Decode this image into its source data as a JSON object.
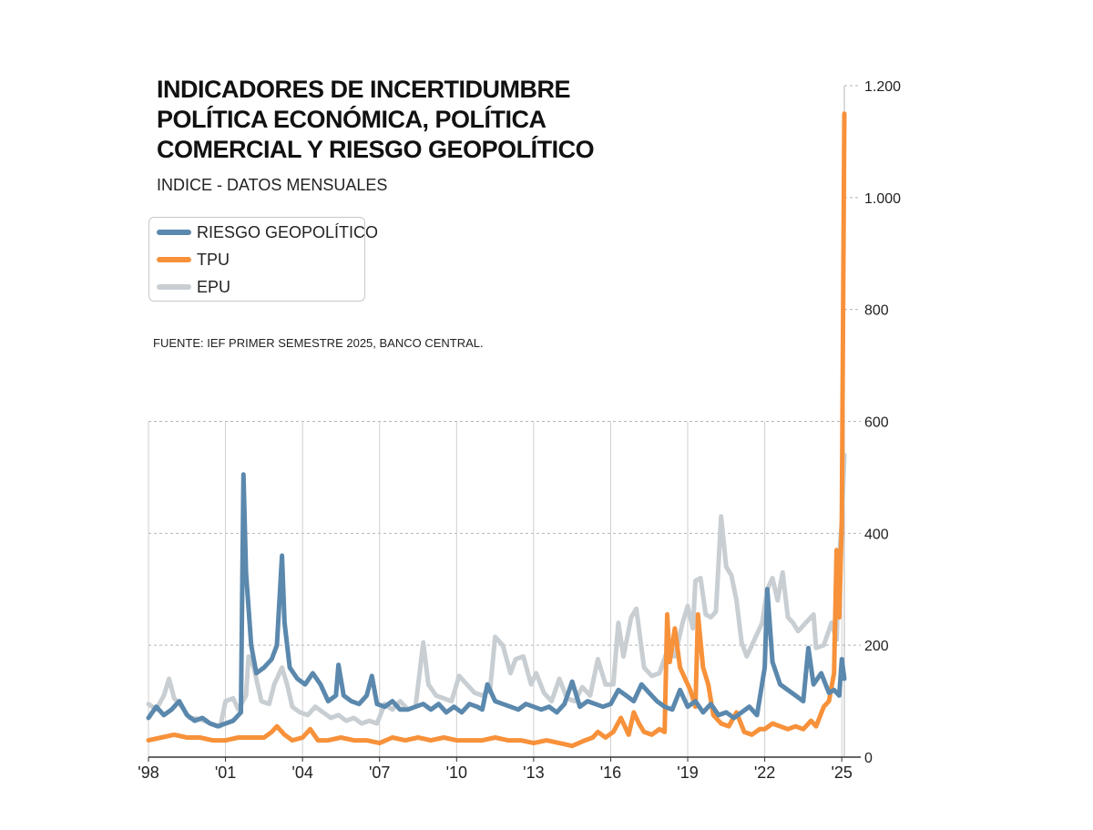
{
  "header": {
    "title": "INDICADORES DE INCERTIDUMBRE POLÍTICA ECONÓMICA, POLÍTICA COMERCIAL Y RIESGO GEOPOLÍTICO",
    "subtitle": "INDICE - DATOS MENSUALES"
  },
  "legend": {
    "items": [
      {
        "label": "RIESGO GEOPOLÍTICO",
        "color": "#5b88ad"
      },
      {
        "label": "TPU",
        "color": "#f7913a"
      },
      {
        "label": "EPU",
        "color": "#c8ced2"
      }
    ]
  },
  "source": "FUENTE: IEF PRIMER SEMESTRE 2025, BANCO CENTRAL.",
  "chart_data": {
    "type": "line",
    "x_tick_labels": [
      "'98",
      "'01",
      "'04",
      "'07",
      "'10",
      "'13",
      "'16",
      "'19",
      "'22",
      "'25"
    ],
    "x_tick_years": [
      1998,
      2001,
      2004,
      2007,
      2010,
      2013,
      2016,
      2019,
      2022,
      2025
    ],
    "xlim": [
      1998,
      2025.1
    ],
    "y_tick_labels": [
      "0",
      "200",
      "400",
      "600",
      "800",
      "1.000",
      "1.200"
    ],
    "y_tick_values": [
      0,
      200,
      400,
      600,
      800,
      1000,
      1200
    ],
    "ylim": [
      0,
      1200
    ],
    "grid": true,
    "legend_position": "top-left",
    "series": [
      {
        "name": "EPU",
        "color": "#c8ced2",
        "points": [
          [
            1998.0,
            95
          ],
          [
            1998.3,
            85
          ],
          [
            1998.6,
            110
          ],
          [
            1998.8,
            140
          ],
          [
            1999.0,
            105
          ],
          [
            1999.3,
            90
          ],
          [
            1999.6,
            70
          ],
          [
            2000.0,
            68
          ],
          [
            2000.4,
            60
          ],
          [
            2000.8,
            55
          ],
          [
            2001.0,
            100
          ],
          [
            2001.3,
            105
          ],
          [
            2001.5,
            85
          ],
          [
            2001.8,
            110
          ],
          [
            2001.9,
            180
          ],
          [
            2002.1,
            160
          ],
          [
            2002.4,
            100
          ],
          [
            2002.7,
            95
          ],
          [
            2002.9,
            130
          ],
          [
            2003.2,
            160
          ],
          [
            2003.4,
            130
          ],
          [
            2003.6,
            90
          ],
          [
            2003.9,
            80
          ],
          [
            2004.2,
            75
          ],
          [
            2004.5,
            90
          ],
          [
            2004.8,
            80
          ],
          [
            2005.1,
            70
          ],
          [
            2005.4,
            75
          ],
          [
            2005.7,
            65
          ],
          [
            2006.0,
            70
          ],
          [
            2006.3,
            60
          ],
          [
            2006.6,
            65
          ],
          [
            2006.9,
            60
          ],
          [
            2007.2,
            95
          ],
          [
            2007.5,
            85
          ],
          [
            2007.8,
            100
          ],
          [
            2008.1,
            85
          ],
          [
            2008.4,
            90
          ],
          [
            2008.7,
            205
          ],
          [
            2008.9,
            130
          ],
          [
            2009.2,
            110
          ],
          [
            2009.5,
            105
          ],
          [
            2009.8,
            100
          ],
          [
            2010.1,
            145
          ],
          [
            2010.4,
            130
          ],
          [
            2010.7,
            115
          ],
          [
            2011.0,
            110
          ],
          [
            2011.3,
            120
          ],
          [
            2011.5,
            215
          ],
          [
            2011.8,
            200
          ],
          [
            2012.1,
            150
          ],
          [
            2012.3,
            175
          ],
          [
            2012.6,
            180
          ],
          [
            2012.9,
            130
          ],
          [
            2013.1,
            150
          ],
          [
            2013.4,
            115
          ],
          [
            2013.7,
            100
          ],
          [
            2014.0,
            140
          ],
          [
            2014.3,
            105
          ],
          [
            2014.6,
            100
          ],
          [
            2014.9,
            125
          ],
          [
            2015.2,
            110
          ],
          [
            2015.5,
            175
          ],
          [
            2015.8,
            130
          ],
          [
            2016.1,
            130
          ],
          [
            2016.3,
            240
          ],
          [
            2016.5,
            180
          ],
          [
            2016.8,
            250
          ],
          [
            2017.0,
            265
          ],
          [
            2017.3,
            160
          ],
          [
            2017.6,
            145
          ],
          [
            2017.9,
            150
          ],
          [
            2018.2,
            190
          ],
          [
            2018.5,
            180
          ],
          [
            2018.8,
            240
          ],
          [
            2019.0,
            270
          ],
          [
            2019.2,
            230
          ],
          [
            2019.3,
            315
          ],
          [
            2019.5,
            320
          ],
          [
            2019.7,
            255
          ],
          [
            2019.9,
            250
          ],
          [
            2020.1,
            260
          ],
          [
            2020.3,
            430
          ],
          [
            2020.5,
            340
          ],
          [
            2020.7,
            325
          ],
          [
            2020.9,
            280
          ],
          [
            2021.1,
            205
          ],
          [
            2021.3,
            180
          ],
          [
            2021.5,
            200
          ],
          [
            2021.8,
            230
          ],
          [
            2021.9,
            240
          ],
          [
            2022.1,
            300
          ],
          [
            2022.3,
            320
          ],
          [
            2022.5,
            280
          ],
          [
            2022.7,
            330
          ],
          [
            2022.9,
            250
          ],
          [
            2023.1,
            240
          ],
          [
            2023.3,
            225
          ],
          [
            2023.6,
            240
          ],
          [
            2023.9,
            255
          ],
          [
            2024.0,
            195
          ],
          [
            2024.3,
            200
          ],
          [
            2024.6,
            240
          ],
          [
            2024.8,
            210
          ],
          [
            2024.9,
            360
          ],
          [
            2025.0,
            420
          ],
          [
            2025.1,
            540
          ]
        ]
      },
      {
        "name": "TPU",
        "color": "#f7913a",
        "points": [
          [
            1998.0,
            30
          ],
          [
            1998.5,
            35
          ],
          [
            1999.0,
            40
          ],
          [
            1999.5,
            35
          ],
          [
            2000.0,
            35
          ],
          [
            2000.5,
            30
          ],
          [
            2001.0,
            30
          ],
          [
            2001.5,
            35
          ],
          [
            2002.0,
            35
          ],
          [
            2002.5,
            35
          ],
          [
            2002.8,
            45
          ],
          [
            2003.0,
            55
          ],
          [
            2003.3,
            40
          ],
          [
            2003.6,
            30
          ],
          [
            2004.0,
            35
          ],
          [
            2004.3,
            50
          ],
          [
            2004.6,
            30
          ],
          [
            2005.0,
            30
          ],
          [
            2005.5,
            35
          ],
          [
            2006.0,
            30
          ],
          [
            2006.5,
            30
          ],
          [
            2007.0,
            25
          ],
          [
            2007.5,
            35
          ],
          [
            2008.0,
            30
          ],
          [
            2008.5,
            35
          ],
          [
            2009.0,
            30
          ],
          [
            2009.5,
            35
          ],
          [
            2010.0,
            30
          ],
          [
            2010.5,
            30
          ],
          [
            2011.0,
            30
          ],
          [
            2011.5,
            35
          ],
          [
            2012.0,
            30
          ],
          [
            2012.5,
            30
          ],
          [
            2013.0,
            25
          ],
          [
            2013.5,
            30
          ],
          [
            2014.0,
            25
          ],
          [
            2014.5,
            20
          ],
          [
            2015.0,
            30
          ],
          [
            2015.3,
            35
          ],
          [
            2015.5,
            45
          ],
          [
            2015.8,
            35
          ],
          [
            2016.1,
            45
          ],
          [
            2016.4,
            70
          ],
          [
            2016.7,
            40
          ],
          [
            2016.9,
            80
          ],
          [
            2017.1,
            60
          ],
          [
            2017.3,
            45
          ],
          [
            2017.6,
            40
          ],
          [
            2017.9,
            50
          ],
          [
            2018.1,
            45
          ],
          [
            2018.2,
            255
          ],
          [
            2018.3,
            170
          ],
          [
            2018.5,
            230
          ],
          [
            2018.7,
            160
          ],
          [
            2018.9,
            140
          ],
          [
            2019.1,
            120
          ],
          [
            2019.3,
            90
          ],
          [
            2019.4,
            255
          ],
          [
            2019.6,
            160
          ],
          [
            2019.8,
            130
          ],
          [
            2020.0,
            75
          ],
          [
            2020.3,
            60
          ],
          [
            2020.6,
            55
          ],
          [
            2020.9,
            80
          ],
          [
            2021.2,
            45
          ],
          [
            2021.5,
            40
          ],
          [
            2021.8,
            50
          ],
          [
            2022.0,
            50
          ],
          [
            2022.3,
            60
          ],
          [
            2022.6,
            55
          ],
          [
            2022.9,
            50
          ],
          [
            2023.2,
            55
          ],
          [
            2023.5,
            50
          ],
          [
            2023.8,
            65
          ],
          [
            2024.0,
            55
          ],
          [
            2024.3,
            90
          ],
          [
            2024.5,
            100
          ],
          [
            2024.7,
            150
          ],
          [
            2024.8,
            370
          ],
          [
            2024.9,
            250
          ],
          [
            2025.0,
            420
          ],
          [
            2025.1,
            1150
          ]
        ]
      },
      {
        "name": "RIESGO GEOPOLÍTICO",
        "color": "#5b88ad",
        "points": [
          [
            1998.0,
            70
          ],
          [
            1998.3,
            90
          ],
          [
            1998.6,
            75
          ],
          [
            1998.9,
            85
          ],
          [
            1999.2,
            100
          ],
          [
            1999.5,
            75
          ],
          [
            1999.8,
            65
          ],
          [
            2000.1,
            70
          ],
          [
            2000.4,
            60
          ],
          [
            2000.7,
            55
          ],
          [
            2001.0,
            60
          ],
          [
            2001.3,
            65
          ],
          [
            2001.6,
            80
          ],
          [
            2001.7,
            505
          ],
          [
            2001.8,
            330
          ],
          [
            2002.0,
            200
          ],
          [
            2002.2,
            150
          ],
          [
            2002.5,
            160
          ],
          [
            2002.8,
            175
          ],
          [
            2003.0,
            200
          ],
          [
            2003.2,
            360
          ],
          [
            2003.3,
            240
          ],
          [
            2003.5,
            160
          ],
          [
            2003.8,
            140
          ],
          [
            2004.1,
            130
          ],
          [
            2004.4,
            150
          ],
          [
            2004.7,
            130
          ],
          [
            2005.0,
            100
          ],
          [
            2005.3,
            110
          ],
          [
            2005.4,
            165
          ],
          [
            2005.6,
            110
          ],
          [
            2005.9,
            100
          ],
          [
            2006.2,
            95
          ],
          [
            2006.5,
            110
          ],
          [
            2006.7,
            145
          ],
          [
            2006.9,
            95
          ],
          [
            2007.2,
            90
          ],
          [
            2007.5,
            100
          ],
          [
            2007.8,
            85
          ],
          [
            2008.1,
            85
          ],
          [
            2008.4,
            90
          ],
          [
            2008.7,
            95
          ],
          [
            2009.0,
            85
          ],
          [
            2009.3,
            95
          ],
          [
            2009.6,
            80
          ],
          [
            2009.9,
            90
          ],
          [
            2010.2,
            80
          ],
          [
            2010.5,
            95
          ],
          [
            2010.8,
            90
          ],
          [
            2011.0,
            85
          ],
          [
            2011.2,
            130
          ],
          [
            2011.5,
            100
          ],
          [
            2011.8,
            95
          ],
          [
            2012.1,
            90
          ],
          [
            2012.4,
            85
          ],
          [
            2012.7,
            95
          ],
          [
            2013.0,
            90
          ],
          [
            2013.3,
            85
          ],
          [
            2013.6,
            90
          ],
          [
            2013.9,
            80
          ],
          [
            2014.2,
            95
          ],
          [
            2014.5,
            135
          ],
          [
            2014.8,
            90
          ],
          [
            2015.1,
            100
          ],
          [
            2015.4,
            95
          ],
          [
            2015.7,
            90
          ],
          [
            2016.0,
            95
          ],
          [
            2016.3,
            120
          ],
          [
            2016.6,
            110
          ],
          [
            2016.9,
            100
          ],
          [
            2017.2,
            130
          ],
          [
            2017.5,
            115
          ],
          [
            2017.8,
            100
          ],
          [
            2018.1,
            90
          ],
          [
            2018.4,
            85
          ],
          [
            2018.7,
            120
          ],
          [
            2019.0,
            90
          ],
          [
            2019.3,
            100
          ],
          [
            2019.6,
            80
          ],
          [
            2019.9,
            95
          ],
          [
            2020.2,
            75
          ],
          [
            2020.5,
            80
          ],
          [
            2020.8,
            70
          ],
          [
            2021.1,
            80
          ],
          [
            2021.4,
            90
          ],
          [
            2021.7,
            75
          ],
          [
            2022.0,
            160
          ],
          [
            2022.1,
            300
          ],
          [
            2022.3,
            170
          ],
          [
            2022.6,
            130
          ],
          [
            2022.9,
            120
          ],
          [
            2023.2,
            110
          ],
          [
            2023.5,
            100
          ],
          [
            2023.7,
            195
          ],
          [
            2023.9,
            130
          ],
          [
            2024.2,
            150
          ],
          [
            2024.5,
            115
          ],
          [
            2024.7,
            120
          ],
          [
            2024.9,
            110
          ],
          [
            2025.0,
            175
          ],
          [
            2025.1,
            140
          ]
        ]
      }
    ]
  }
}
